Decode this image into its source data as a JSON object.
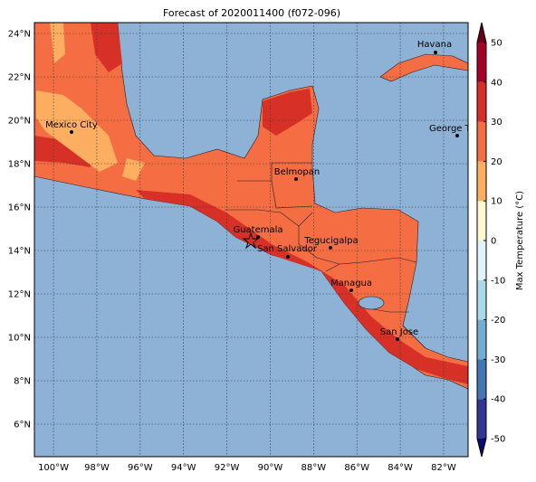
{
  "title": "Forecast of 2020011400 (f072-096)",
  "map": {
    "lonlim": [
      -100.88,
      -80.87
    ],
    "latlim": [
      4.5,
      24.5
    ],
    "xticks": [
      {
        "value": -100,
        "label": "100°W"
      },
      {
        "value": -98,
        "label": "98°W"
      },
      {
        "value": -96,
        "label": "96°W"
      },
      {
        "value": -94,
        "label": "94°W"
      },
      {
        "value": -92,
        "label": "92°W"
      },
      {
        "value": -90,
        "label": "90°W"
      },
      {
        "value": -88,
        "label": "88°W"
      },
      {
        "value": -86,
        "label": "86°W"
      },
      {
        "value": -84,
        "label": "84°W"
      },
      {
        "value": -82,
        "label": "82°W"
      }
    ],
    "yticks": [
      {
        "value": 6,
        "label": "6°N"
      },
      {
        "value": 8,
        "label": "8°N"
      },
      {
        "value": 10,
        "label": "10°N"
      },
      {
        "value": 12,
        "label": "12°N"
      },
      {
        "value": 14,
        "label": "14°N"
      },
      {
        "value": 16,
        "label": "16°N"
      },
      {
        "value": 18,
        "label": "18°N"
      },
      {
        "value": 20,
        "label": "20°N"
      },
      {
        "value": 22,
        "label": "22°N"
      },
      {
        "value": 24,
        "label": "24°N"
      }
    ],
    "grid": true
  },
  "cities": [
    "Havana",
    "Mexico City",
    "George Town",
    "Belmopan",
    "Guatemala",
    "San Salvador",
    "Tegucigalpa",
    "Managua",
    "San Jose"
  ],
  "colorbar": {
    "label": "Max Temperature (°C)",
    "lim": [
      -50,
      50
    ],
    "ticks": [
      -50,
      -40,
      -30,
      -20,
      -10,
      0,
      10,
      20,
      30,
      40,
      50
    ],
    "colors": [
      "#313695",
      "#4575b4",
      "#74add1",
      "#abd9e9",
      "#e0f3f8",
      "#fef9d0",
      "#fdae61",
      "#f46d43",
      "#d73027",
      "#a50026"
    ],
    "under_color": "#0c0c70",
    "over_color": "#67001f"
  }
}
